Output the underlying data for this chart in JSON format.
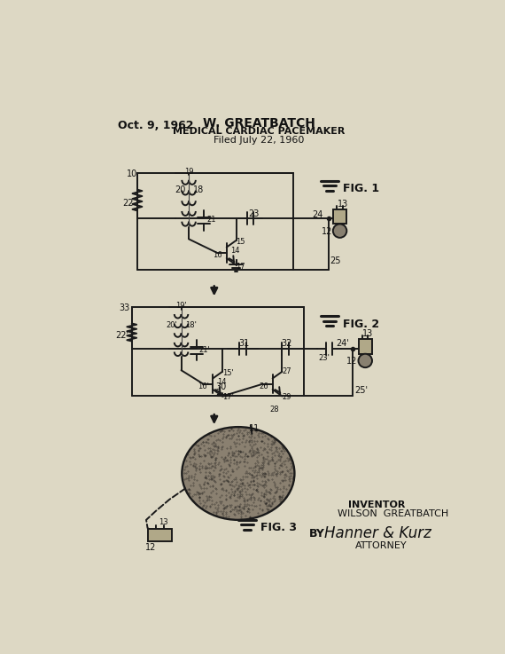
{
  "bg_color": "#ddd8c4",
  "title_date": "Oct. 9, 1962",
  "title_name": "W. GREATBATCH",
  "title_patent": "MEDICAL CARDIAC PACEMAKER",
  "title_filed": "Filed July 22, 1960",
  "inventor_label": "INVENTOR",
  "inventor_name": "WILSON  GREATBATCH",
  "by_label": "BY",
  "signature": "Hanner & Kurz",
  "attorney_label": "ATTORNEY",
  "fig1_label": "FIG. 1",
  "fig2_label": "FIG. 2",
  "fig3_label": "FIG. 3",
  "line_color": "#1a1a1a",
  "text_color": "#111111"
}
